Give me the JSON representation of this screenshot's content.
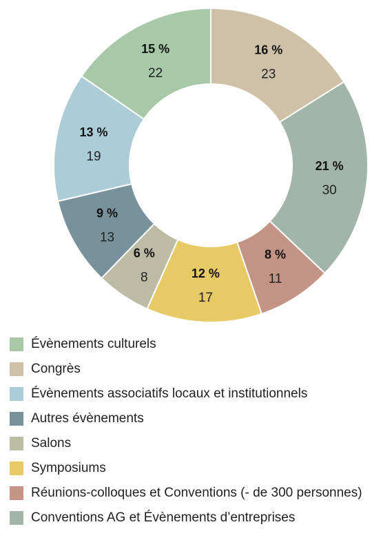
{
  "chart_data": {
    "type": "pie",
    "donut": true,
    "title": "",
    "legend_position": "bottom",
    "slices": [
      {
        "name": "Congrès",
        "percent": "16 %",
        "value": 23,
        "color": "#cfc0a8"
      },
      {
        "name": "Conventions AG et Évènements d’entreprises",
        "percent": "21 %",
        "value": 30,
        "color": "#a1b5a8"
      },
      {
        "name": "Réunions-colloques et Conventions (- de 300 personnes)",
        "percent": "8 %",
        "value": 11,
        "color": "#c39386"
      },
      {
        "name": "Symposiums",
        "percent": "12 %",
        "value": 17,
        "color": "#e7c966"
      },
      {
        "name": "Salons",
        "percent": "6 %",
        "value": 8,
        "color": "#bbbca3"
      },
      {
        "name": "Autres évènements",
        "percent": "9 %",
        "value": 13,
        "color": "#78929c"
      },
      {
        "name": "Évènements associatifs locaux et institutionnels",
        "percent": "13 %",
        "value": 19,
        "color": "#acccd8"
      },
      {
        "name": "Évènements culturels",
        "percent": "15 %",
        "value": 22,
        "color": "#a8c9a8"
      }
    ],
    "legend": [
      {
        "label": "Évènements culturels",
        "color": "#a8c9a8"
      },
      {
        "label": "Congrès",
        "color": "#cfc0a8"
      },
      {
        "label": "Évènements associatifs locaux et institutionnels",
        "color": "#acccd8"
      },
      {
        "label": "Autres évènements",
        "color": "#78929c"
      },
      {
        "label": "Salons",
        "color": "#bbbca3"
      },
      {
        "label": "Symposiums",
        "color": "#e7c966"
      },
      {
        "label": "Réunions-colloques et Conventions (- de 300 personnes)",
        "color": "#c39386"
      },
      {
        "label": "Conventions AG et Évènements d’entreprises",
        "color": "#a1b5a8"
      }
    ]
  }
}
